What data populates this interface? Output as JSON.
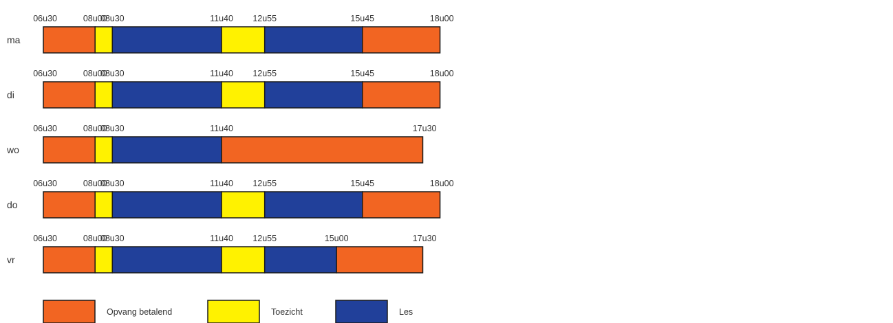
{
  "colors": {
    "Opvang betalend": "#f26522",
    "Toezicht": "#fff200",
    "Les": "#21409a"
  },
  "legend": [
    {
      "label": "Opvang betalend",
      "color": "#f26522",
      "icon": "orange-swatch"
    },
    {
      "label": "Toezicht",
      "color": "#fff200",
      "icon": "yellow-swatch"
    },
    {
      "label": "Les",
      "color": "#21409a",
      "icon": "blue-swatch"
    }
  ],
  "days": [
    {
      "day": "ma",
      "time_labels": [
        "06u30",
        "08u00",
        "08u30",
        "11u40",
        "12u55",
        "15u45",
        "18u00"
      ],
      "segments": [
        {
          "start": "06:30",
          "end": "08:00",
          "type": "Opvang betalend"
        },
        {
          "start": "08:00",
          "end": "08:30",
          "type": "Toezicht"
        },
        {
          "start": "08:30",
          "end": "11:40",
          "type": "Les"
        },
        {
          "start": "11:40",
          "end": "12:55",
          "type": "Toezicht"
        },
        {
          "start": "12:55",
          "end": "15:45",
          "type": "Les"
        },
        {
          "start": "15:45",
          "end": "18:00",
          "type": "Opvang betalend"
        }
      ]
    },
    {
      "day": "di",
      "time_labels": [
        "06u30",
        "08u00",
        "08u30",
        "11u40",
        "12u55",
        "15u45",
        "18u00"
      ],
      "segments": [
        {
          "start": "06:30",
          "end": "08:00",
          "type": "Opvang betalend"
        },
        {
          "start": "08:00",
          "end": "08:30",
          "type": "Toezicht"
        },
        {
          "start": "08:30",
          "end": "11:40",
          "type": "Les"
        },
        {
          "start": "11:40",
          "end": "12:55",
          "type": "Toezicht"
        },
        {
          "start": "12:55",
          "end": "15:45",
          "type": "Les"
        },
        {
          "start": "15:45",
          "end": "18:00",
          "type": "Opvang betalend"
        }
      ]
    },
    {
      "day": "wo",
      "time_labels": [
        "06u30",
        "08u00",
        "08u30",
        "11u40",
        "17u30"
      ],
      "segments": [
        {
          "start": "06:30",
          "end": "08:00",
          "type": "Opvang betalend"
        },
        {
          "start": "08:00",
          "end": "08:30",
          "type": "Toezicht"
        },
        {
          "start": "08:30",
          "end": "11:40",
          "type": "Les"
        },
        {
          "start": "11:40",
          "end": "17:30",
          "type": "Opvang betalend"
        }
      ]
    },
    {
      "day": "do",
      "time_labels": [
        "06u30",
        "08u00",
        "08u30",
        "11u40",
        "12u55",
        "15u45",
        "18u00"
      ],
      "segments": [
        {
          "start": "06:30",
          "end": "08:00",
          "type": "Opvang betalend"
        },
        {
          "start": "08:00",
          "end": "08:30",
          "type": "Toezicht"
        },
        {
          "start": "08:30",
          "end": "11:40",
          "type": "Les"
        },
        {
          "start": "11:40",
          "end": "12:55",
          "type": "Toezicht"
        },
        {
          "start": "12:55",
          "end": "15:45",
          "type": "Les"
        },
        {
          "start": "15:45",
          "end": "18:00",
          "type": "Opvang betalend"
        }
      ]
    },
    {
      "day": "vr",
      "time_labels": [
        "06u30",
        "08u00",
        "08u30",
        "11u40",
        "12u55",
        "15u00",
        "17u30"
      ],
      "segments": [
        {
          "start": "06:30",
          "end": "08:00",
          "type": "Opvang betalend"
        },
        {
          "start": "08:00",
          "end": "08:30",
          "type": "Toezicht"
        },
        {
          "start": "08:30",
          "end": "11:40",
          "type": "Les"
        },
        {
          "start": "11:40",
          "end": "12:55",
          "type": "Toezicht"
        },
        {
          "start": "12:55",
          "end": "15:00",
          "type": "Les"
        },
        {
          "start": "15:00",
          "end": "17:30",
          "type": "Opvang betalend"
        }
      ]
    }
  ]
}
